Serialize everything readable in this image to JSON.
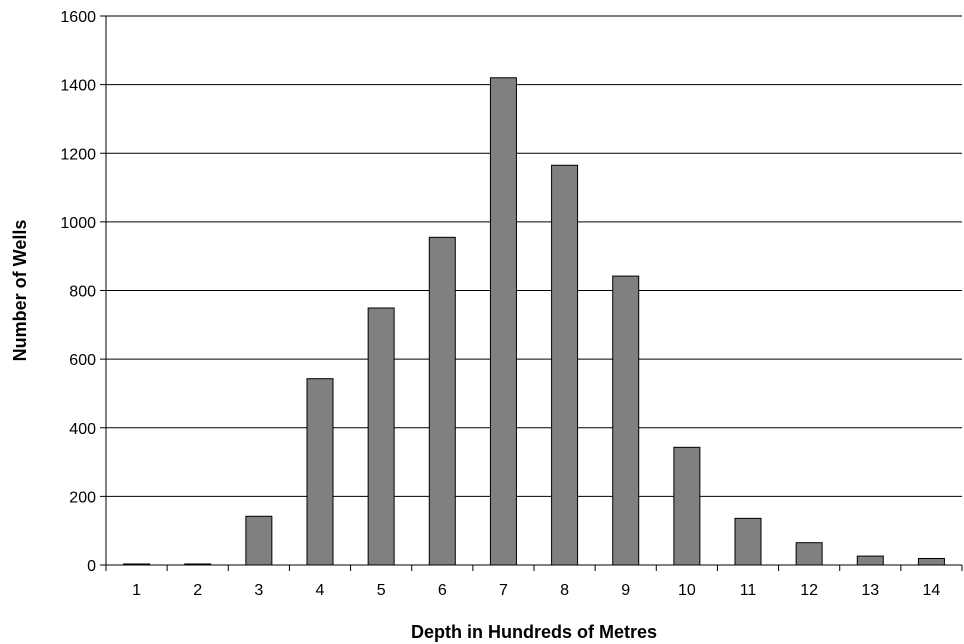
{
  "chart_data": {
    "type": "bar",
    "title": "",
    "xlabel": "Depth in Hundreds of Metres",
    "ylabel": "Number of Wells",
    "categories": [
      "1",
      "2",
      "3",
      "4",
      "5",
      "6",
      "7",
      "8",
      "9",
      "10",
      "11",
      "12",
      "13",
      "14"
    ],
    "values": [
      3,
      3,
      142,
      543,
      749,
      955,
      1420,
      1165,
      842,
      343,
      136,
      65,
      26,
      19
    ],
    "ylim": [
      0,
      1600
    ],
    "yticks": [
      "0",
      "200",
      "400",
      "600",
      "800",
      "1000",
      "1200",
      "1400",
      "1600"
    ],
    "grid": true,
    "legend": "none",
    "bar_color": "#808080",
    "bar_stroke": "#000000"
  }
}
